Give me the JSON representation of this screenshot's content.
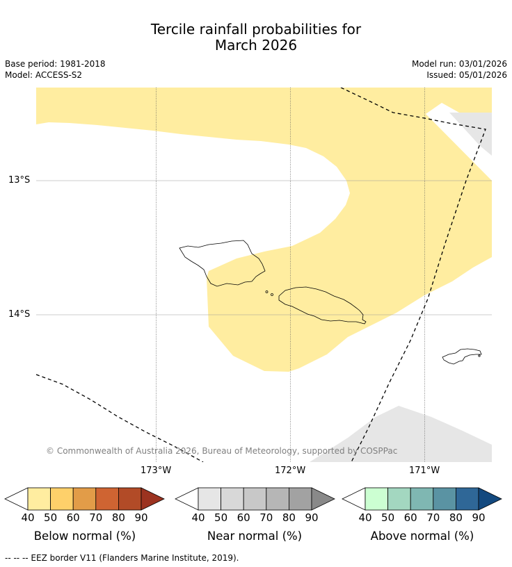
{
  "title_line1": "Tercile rainfall probabilities for",
  "title_line2": "March 2026",
  "meta": {
    "base_period": "Base period: 1981-2018",
    "model": "Model: ACCESS-S2",
    "model_run": "Model run: 03/01/2026",
    "issued": "Issued: 05/01/2026"
  },
  "map": {
    "lat_labels": [
      "13°S",
      "14°S"
    ],
    "lon_labels": [
      "173°W",
      "172°W",
      "171°W"
    ],
    "copyright": "© Commonwealth of Australia 2026, Bureau of Meteorology, supported by COSPPac",
    "colors": {
      "below_40_50": "#ffeda0",
      "near_40_50": "#e6e6e6",
      "coast": "#000000",
      "grid": "#999999"
    }
  },
  "legends": [
    {
      "caption": "Below normal (%)",
      "ticks": [
        "40",
        "50",
        "60",
        "70",
        "80",
        "90"
      ],
      "colors": [
        "#ffffff",
        "#ffeda0",
        "#fed06a",
        "#e29c48",
        "#cf6432",
        "#b24b27",
        "#9c3320"
      ]
    },
    {
      "caption": "Near normal (%)",
      "ticks": [
        "40",
        "50",
        "60",
        "70",
        "80",
        "90"
      ],
      "colors": [
        "#ffffff",
        "#e6e6e6",
        "#d8d8d8",
        "#c8c8c8",
        "#b6b6b6",
        "#a2a2a2",
        "#898989"
      ]
    },
    {
      "caption": "Above normal (%)",
      "ticks": [
        "40",
        "50",
        "60",
        "70",
        "80",
        "90"
      ],
      "colors": [
        "#ffffff",
        "#ccffd2",
        "#a3d7c0",
        "#7fb7b2",
        "#5a93a3",
        "#2f6797",
        "#13497f"
      ]
    }
  ],
  "footnote": "--  --  -- EEZ border V11 (Flanders Marine Institute, 2019)."
}
